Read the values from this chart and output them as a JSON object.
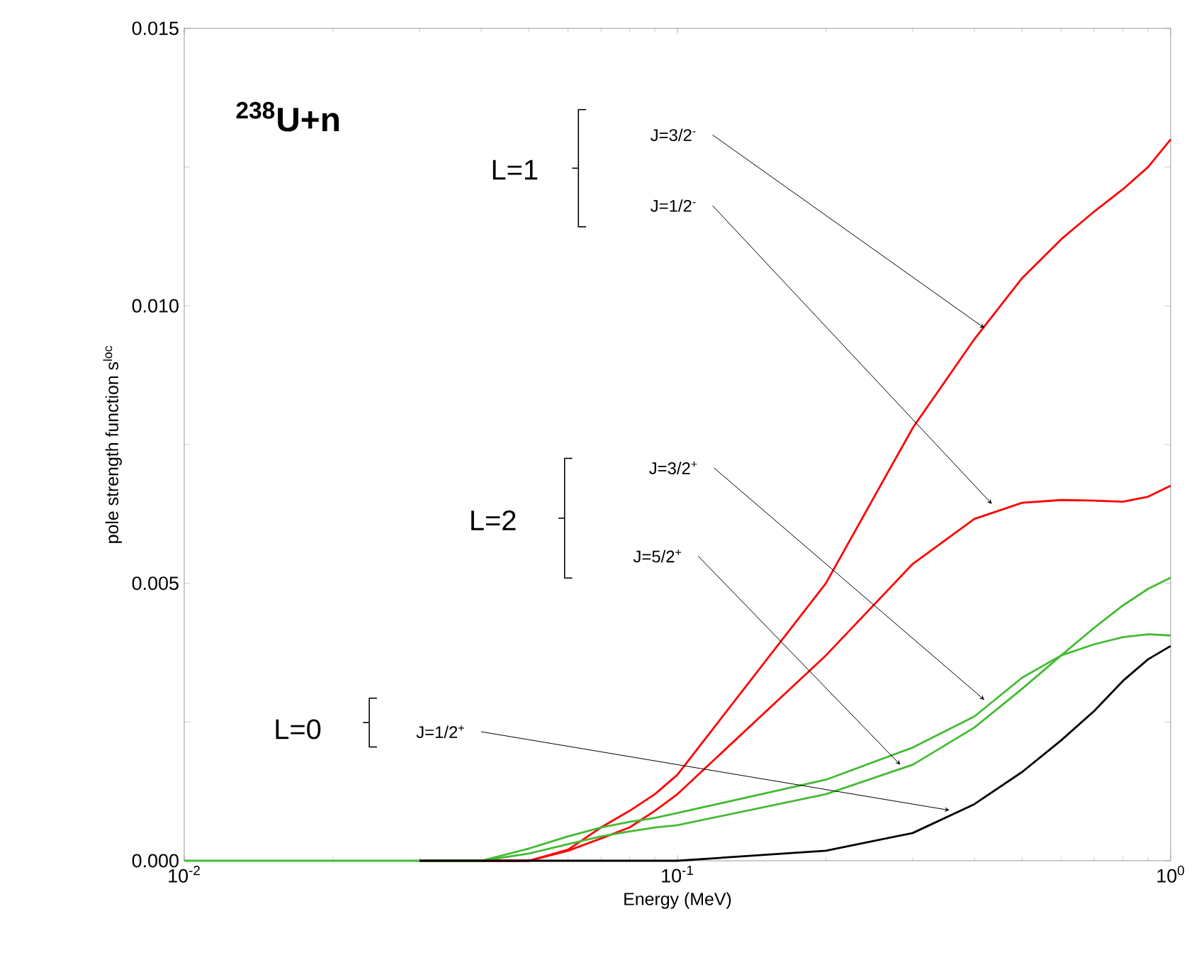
{
  "chart_data": {
    "type": "line",
    "title": "$^{238}$U+n",
    "xlabel": "Energy (MeV)",
    "ylabel": "pole strength function s$^{loc}$",
    "x": [
      0.01,
      0.02,
      0.03,
      0.04,
      0.05,
      0.06,
      0.07,
      0.08,
      0.09,
      0.1,
      0.2,
      0.3,
      0.4,
      0.5,
      0.6,
      0.7,
      0.8,
      0.9,
      1.0
    ],
    "series": [
      {
        "color": "#ff0000",
        "values": [
          null,
          null,
          0,
          0,
          0.0,
          0.0002,
          0.0006,
          0.0009,
          0.0012,
          0.00155,
          0.005,
          0.0078,
          0.0094,
          0.0105,
          0.0112,
          0.0117,
          0.0121,
          0.0125,
          0.013
        ]
      },
      {
        "color": "#ff0000",
        "values": [
          null,
          null,
          0,
          0,
          0.0,
          0.00018,
          0.0004,
          0.0006,
          0.0009,
          0.0012,
          0.0037,
          0.00535,
          0.00616,
          0.00645,
          0.0065,
          0.00649,
          0.00647,
          0.00656,
          0.00676
        ]
      },
      {
        "color": "#44bb33",
        "values": [
          0,
          0,
          0,
          0,
          0.00022,
          0.00044,
          0.0006,
          0.0007,
          0.00077,
          0.00086,
          0.00146,
          0.00204,
          0.0026,
          0.0033,
          0.0037,
          0.0039,
          0.00403,
          0.00408,
          0.00406
        ]
      },
      {
        "color": "#44bb33",
        "values": [
          null,
          null,
          0,
          0,
          0.00013,
          0.0003,
          0.00044,
          0.00053,
          0.0006,
          0.00064,
          0.0012,
          0.00173,
          0.0024,
          0.0031,
          0.0037,
          0.0042,
          0.0046,
          0.0049,
          0.0051
        ]
      },
      {
        "color": "#000000",
        "values": [
          null,
          null,
          0,
          0,
          0,
          0,
          0,
          0,
          0,
          0.0,
          0.00018,
          0.0005,
          0.00102,
          0.0016,
          0.00217,
          0.0027,
          0.00324,
          0.00363,
          0.00387
        ]
      }
    ],
    "xlim": [
      0.01,
      1
    ],
    "ylim": [
      0,
      0.015
    ],
    "log": "x",
    "xticks": [
      {
        "value": 0.01,
        "label": "10$^{-2}$"
      },
      {
        "value": 0.1,
        "label": "10$^{-1}$"
      },
      {
        "value": 1,
        "label": "10$^{0}$"
      }
    ],
    "yticks": [
      {
        "value": 0,
        "label": "0.000"
      },
      {
        "value": 0.0025,
        "label": null
      },
      {
        "value": 0.005,
        "label": "0.005"
      },
      {
        "value": 0.0075,
        "label": null
      },
      {
        "value": 0.01,
        "label": "0.010"
      },
      {
        "value": 0.0125,
        "label": null
      },
      {
        "value": 0.015,
        "label": "0.015"
      }
    ],
    "annotations": [
      "L=1",
      {
        "text": "J=3/2$^{-}$",
        "x": 0.419,
        "y": 0.0096
      },
      {
        "text": "J=1/2$^{-}$",
        "x": 0.434,
        "y": 0.00643
      },
      "L=2",
      {
        "text": "J=3/2$^{+}$",
        "x": 0.419,
        "y": 0.0029
      },
      {
        "text": "J=5/2$^{+}$",
        "x": 0.283,
        "y": 0.00173
      },
      "L=0",
      {
        "text": "J=1/2$^{+}$",
        "x": 0.356,
        "y": 0.00091
      }
    ]
  }
}
